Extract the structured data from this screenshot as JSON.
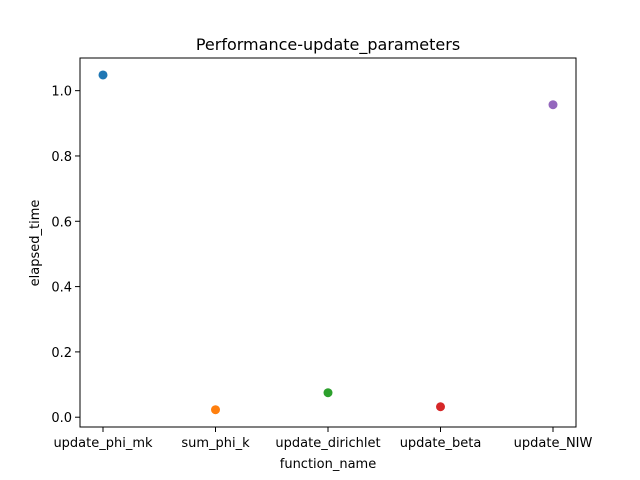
{
  "chart_data": {
    "type": "scatter",
    "title": "Performance-update_parameters",
    "xlabel": "function_name",
    "ylabel": "elapsed_time",
    "categories": [
      "update_phi_mk",
      "sum_phi_k",
      "update_dirichlet",
      "update_beta",
      "update_NIW"
    ],
    "values": [
      1.048,
      0.023,
      0.075,
      0.032,
      0.957
    ],
    "colors": [
      "#1f77b4",
      "#ff7f0e",
      "#2ca02c",
      "#d62728",
      "#9467bd"
    ],
    "ylim": [
      -0.03,
      1.1
    ],
    "yticks": [
      0.0,
      0.2,
      0.4,
      0.6,
      0.8,
      1.0
    ],
    "ytick_labels": [
      "0.0",
      "0.2",
      "0.4",
      "0.6",
      "0.8",
      "1.0"
    ],
    "grid": false,
    "legend": "none"
  }
}
